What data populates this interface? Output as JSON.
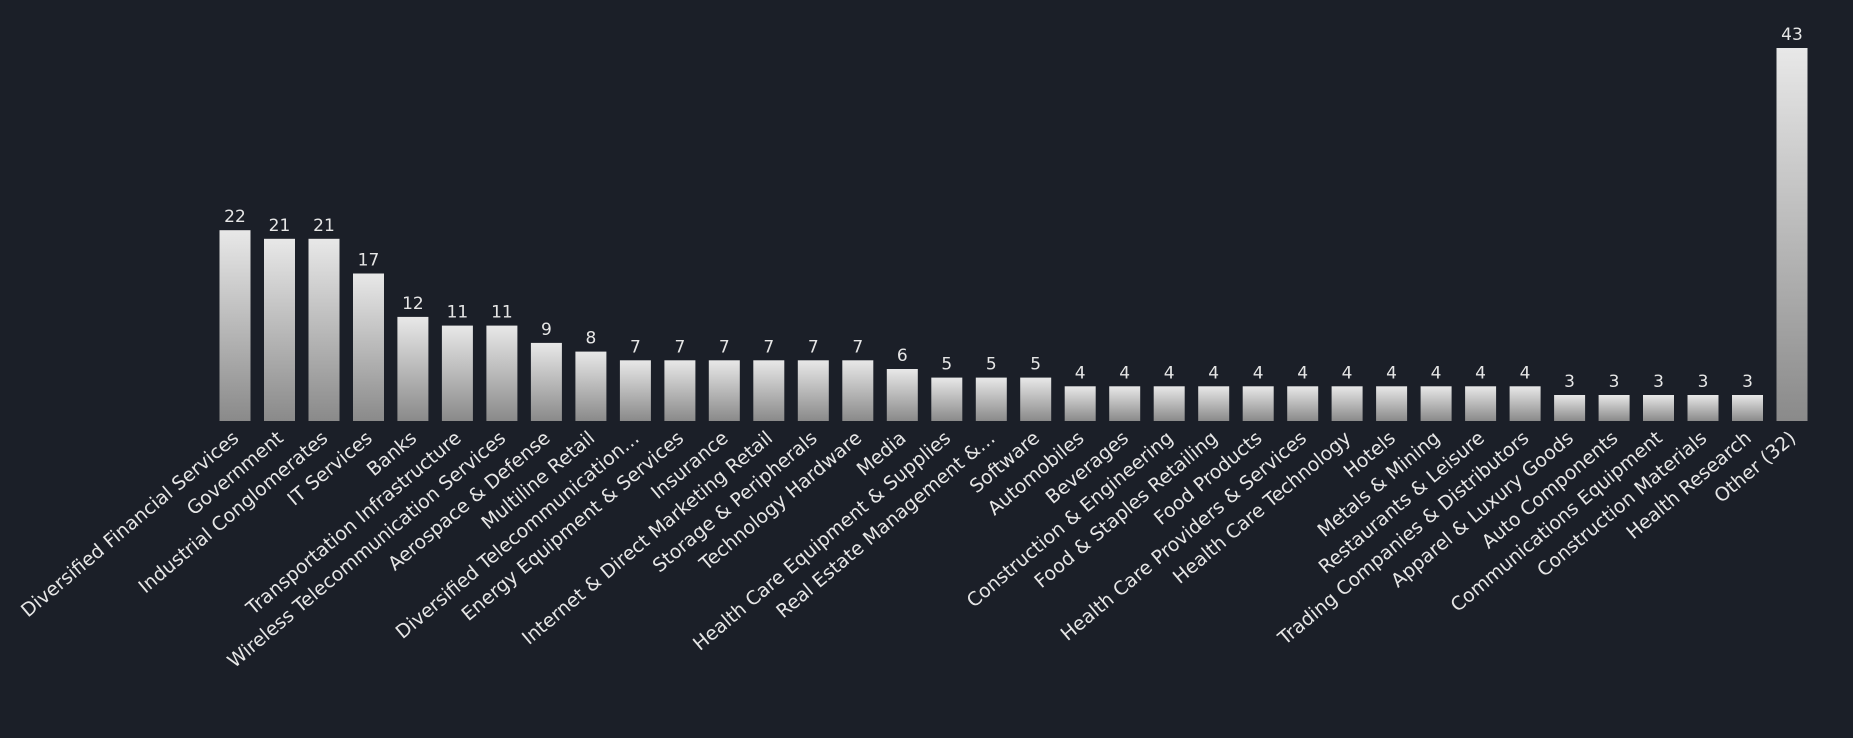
{
  "chart_data": {
    "type": "bar",
    "categories": [
      "Diversified Financial Services",
      "Government",
      "Industrial Conglomerates",
      "IT Services",
      "Banks",
      "Transportation Infrastructure",
      "Wireless Telecommunication Services",
      "Aerospace & Defense",
      "Multiline Retail",
      "Diversified Telecommunication…",
      "Energy Equipment & Services",
      "Insurance",
      "Internet & Direct Marketing Retail",
      "Storage & Peripherals",
      "Technology Hardware",
      "Media",
      "Health Care Equipment & Supplies",
      "Real Estate Management &…",
      "Software",
      "Automobiles",
      "Beverages",
      "Construction & Engineering",
      "Food & Staples Retailing",
      "Food Products",
      "Health Care Providers & Services",
      "Health Care Technology",
      "Hotels",
      "Metals & Mining",
      "Restaurants & Leisure",
      "Trading Companies & Distributors",
      "Apparel & Luxury Goods",
      "Auto Components",
      "Communications Equipment",
      "Construction Materials",
      "Health Research",
      "Other (32)"
    ],
    "values": [
      22,
      21,
      21,
      17,
      12,
      11,
      11,
      9,
      8,
      7,
      7,
      7,
      7,
      7,
      7,
      6,
      5,
      5,
      5,
      4,
      4,
      4,
      4,
      4,
      4,
      4,
      4,
      4,
      4,
      4,
      3,
      3,
      3,
      3,
      3,
      43
    ],
    "ylim": [
      0,
      43
    ],
    "grid": false,
    "legend": "none",
    "colors": {
      "background": "#1b1f28",
      "bar_top": "#e8e8e8",
      "bar_bottom": "#8a8a8a",
      "text": "#e6e6e6"
    }
  }
}
